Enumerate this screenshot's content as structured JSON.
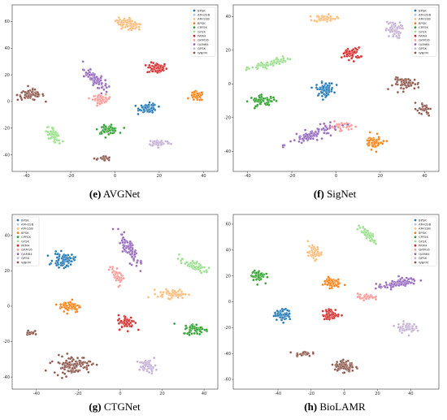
{
  "class_colors": {
    "BPSK": "#1f77b4",
    "AM-DSB": "#aec7e8",
    "AM-SSB": "#ffbb78",
    "8PSK": "#ff7f0e",
    "CPFSK": "#2ca02c",
    "GFSK": "#98df8a",
    "PAM4": "#d62728",
    "QAM16": "#ff9896",
    "QAM64": "#9467bd",
    "QPSK": "#c5b0d5",
    "WBFM": "#8c564b"
  },
  "chart_data": [
    {
      "type": "scatter",
      "title": "",
      "caption_label": "(e)",
      "caption_name": "AVGNet",
      "xlabel": "",
      "ylabel": "",
      "xlim": [
        -45,
        45
      ],
      "ylim": [
        -50,
        70
      ],
      "xticks": [
        -40,
        -20,
        0,
        20,
        40
      ],
      "yticks": [
        -40,
        -20,
        0,
        20,
        40,
        60
      ],
      "legend": [
        "BPSK",
        "AM-DSB",
        "AM-SSB",
        "8PSK",
        "CPFSK",
        "GFSK",
        "PAM4",
        "QAM16",
        "QAM64",
        "QPSK",
        "WBFM"
      ],
      "legend_position": "top-right",
      "clusters": [
        {
          "label": "AM-SSB",
          "cx": 6,
          "cy": 58,
          "rx": 6,
          "ry": 3.5,
          "angle": -30,
          "n": 80
        },
        {
          "label": "PAM4",
          "cx": 19,
          "cy": 25,
          "rx": 4.5,
          "ry": 4,
          "angle": 0,
          "n": 70
        },
        {
          "label": "QAM64",
          "cx": -9,
          "cy": 17,
          "rx": 8,
          "ry": 3,
          "angle": -60,
          "n": 90
        },
        {
          "label": "QAM16",
          "cx": -6,
          "cy": 2,
          "rx": 4,
          "ry": 3,
          "angle": 0,
          "n": 60
        },
        {
          "label": "WBFM",
          "cx": -38,
          "cy": 5,
          "rx": 6,
          "ry": 4,
          "angle": 0,
          "n": 70
        },
        {
          "label": "8PSK",
          "cx": 37,
          "cy": 4,
          "rx": 3,
          "ry": 3.5,
          "angle": 0,
          "n": 50
        },
        {
          "label": "BPSK",
          "cx": 15,
          "cy": -5,
          "rx": 4,
          "ry": 3.5,
          "angle": 0,
          "n": 70
        },
        {
          "label": "CPFSK",
          "cx": -3,
          "cy": -21,
          "rx": 4.5,
          "ry": 3,
          "angle": 0,
          "n": 60
        },
        {
          "label": "GFSK",
          "cx": -28,
          "cy": -25,
          "rx": 6,
          "ry": 2.5,
          "angle": -70,
          "n": 60
        },
        {
          "label": "QPSK",
          "cx": 20,
          "cy": -31,
          "rx": 5,
          "ry": 2.5,
          "angle": 0,
          "n": 60
        },
        {
          "label": "WBFM",
          "cx": -5,
          "cy": -43,
          "rx": 3,
          "ry": 2,
          "angle": 0,
          "n": 25
        }
      ]
    },
    {
      "type": "scatter",
      "title": "",
      "caption_label": "(f)",
      "caption_name": "SigNet",
      "xlabel": "",
      "ylabel": "",
      "xlim": [
        -45,
        45
      ],
      "ylim": [
        -50,
        45
      ],
      "xticks": [
        -40,
        -20,
        0,
        20,
        40
      ],
      "yticks": [
        -40,
        -20,
        0,
        20,
        40
      ],
      "legend": [
        "BPSK",
        "AM-DSB",
        "AM-SSB",
        "8PSK",
        "CPFSK",
        "GFSK",
        "PAM4",
        "QAM16",
        "QAM64",
        "QPSK",
        "WBFM"
      ],
      "legend_position": "top-right",
      "clusters": [
        {
          "label": "AM-SSB",
          "cx": -5,
          "cy": 39,
          "rx": 5,
          "ry": 2,
          "angle": 0,
          "n": 60
        },
        {
          "label": "QPSK",
          "cx": 26,
          "cy": 32,
          "rx": 3.5,
          "ry": 5,
          "angle": 0,
          "n": 55
        },
        {
          "label": "GFSK",
          "cx": -30,
          "cy": 12,
          "rx": 10,
          "ry": 2,
          "angle": 20,
          "n": 70
        },
        {
          "label": "PAM4",
          "cx": 7,
          "cy": 18,
          "rx": 4,
          "ry": 3.5,
          "angle": 0,
          "n": 60
        },
        {
          "label": "BPSK",
          "cx": -5,
          "cy": -3,
          "rx": 4,
          "ry": 4,
          "angle": 0,
          "n": 70
        },
        {
          "label": "WBFM",
          "cx": 32,
          "cy": 0,
          "rx": 6,
          "ry": 3.5,
          "angle": 0,
          "n": 60
        },
        {
          "label": "WBFM",
          "cx": 40,
          "cy": -15,
          "rx": 3,
          "ry": 3,
          "angle": -40,
          "n": 30
        },
        {
          "label": "CPFSK",
          "cx": -33,
          "cy": -10,
          "rx": 6,
          "ry": 3,
          "angle": 0,
          "n": 60
        },
        {
          "label": "QAM16",
          "cx": 2,
          "cy": -25,
          "rx": 5,
          "ry": 2.5,
          "angle": 0,
          "n": 45
        },
        {
          "label": "QAM64",
          "cx": -10,
          "cy": -30,
          "rx": 12,
          "ry": 3,
          "angle": 25,
          "n": 90
        },
        {
          "label": "8PSK",
          "cx": 17,
          "cy": -35,
          "rx": 4,
          "ry": 5,
          "angle": 20,
          "n": 55
        }
      ]
    },
    {
      "type": "scatter",
      "title": "",
      "caption_label": "(g)",
      "caption_name": "CTGNet",
      "xlabel": "",
      "ylabel": "",
      "xlim": [
        -50,
        45
      ],
      "ylim": [
        -45,
        50
      ],
      "xticks": [
        -40,
        -20,
        0,
        20,
        40
      ],
      "yticks": [
        -40,
        -20,
        0,
        20,
        40
      ],
      "legend": [
        "BPSK",
        "AM-DSB",
        "AM-SSB",
        "8PSK",
        "CPFSK",
        "GFSK",
        "PAM4",
        "QAM16",
        "QAM64",
        "QPSK",
        "WBFM"
      ],
      "legend_position": "top-left",
      "clusters": [
        {
          "label": "BPSK",
          "cx": -27,
          "cy": 26,
          "rx": 5,
          "ry": 4,
          "angle": 0,
          "n": 80
        },
        {
          "label": "QAM64",
          "cx": 4,
          "cy": 33,
          "rx": 10,
          "ry": 3,
          "angle": -65,
          "n": 80
        },
        {
          "label": "QAM16",
          "cx": -2,
          "cy": 18,
          "rx": 5,
          "ry": 2.5,
          "angle": -70,
          "n": 40
        },
        {
          "label": "GFSK",
          "cx": 35,
          "cy": 23,
          "rx": 7,
          "ry": 2.5,
          "angle": -30,
          "n": 55
        },
        {
          "label": "AM-SSB",
          "cx": 25,
          "cy": 7,
          "rx": 7,
          "ry": 2.5,
          "angle": 0,
          "n": 60
        },
        {
          "label": "8PSK",
          "cx": -24,
          "cy": 0,
          "rx": 5,
          "ry": 3.5,
          "angle": 0,
          "n": 65
        },
        {
          "label": "PAM4",
          "cx": 3,
          "cy": -9,
          "rx": 4,
          "ry": 4,
          "angle": 0,
          "n": 60
        },
        {
          "label": "CPFSK",
          "cx": 36,
          "cy": -13,
          "rx": 6,
          "ry": 3,
          "angle": 0,
          "n": 60
        },
        {
          "label": "WBFM",
          "cx": -43,
          "cy": -15,
          "rx": 2,
          "ry": 2,
          "angle": 0,
          "n": 20
        },
        {
          "label": "WBFM",
          "cx": -23,
          "cy": -33,
          "rx": 9,
          "ry": 5,
          "angle": 0,
          "n": 110
        },
        {
          "label": "QPSK",
          "cx": 13,
          "cy": -34,
          "rx": 4,
          "ry": 3.5,
          "angle": 0,
          "n": 50
        }
      ]
    },
    {
      "type": "scatter",
      "title": "",
      "caption_label": "(h)",
      "caption_name": "BioLAMR",
      "xlabel": "",
      "ylabel": "",
      "xlim": [
        -65,
        55
      ],
      "ylim": [
        -65,
        65
      ],
      "xticks": [
        -40,
        -20,
        0,
        20,
        40
      ],
      "yticks": [
        -60,
        -40,
        -20,
        0,
        20,
        40,
        60
      ],
      "legend": [
        "BPSK",
        "AM-DSB",
        "AM-SSB",
        "8PSK",
        "CPFSK",
        "GFSK",
        "PAM4",
        "QAM16",
        "QAM64",
        "QPSK",
        "WBFM"
      ],
      "legend_position": "top-right",
      "clusters": [
        {
          "label": "GFSK",
          "cx": 14,
          "cy": 52,
          "rx": 7,
          "ry": 2.5,
          "angle": -50,
          "n": 55
        },
        {
          "label": "AM-SSB",
          "cx": -18,
          "cy": 38,
          "rx": 4,
          "ry": 5,
          "angle": 0,
          "n": 50
        },
        {
          "label": "CPFSK",
          "cx": -52,
          "cy": 20,
          "rx": 4,
          "ry": 4.5,
          "angle": 0,
          "n": 55
        },
        {
          "label": "8PSK",
          "cx": -8,
          "cy": 15,
          "rx": 5,
          "ry": 4,
          "angle": 0,
          "n": 60
        },
        {
          "label": "QAM64",
          "cx": 32,
          "cy": 14,
          "rx": 12,
          "ry": 3,
          "angle": 15,
          "n": 90
        },
        {
          "label": "QAM16",
          "cx": 13,
          "cy": 4,
          "rx": 5,
          "ry": 2.5,
          "angle": 0,
          "n": 40
        },
        {
          "label": "BPSK",
          "cx": -37,
          "cy": -10,
          "rx": 5,
          "ry": 4,
          "angle": 0,
          "n": 70
        },
        {
          "label": "PAM4",
          "cx": -8,
          "cy": -10,
          "rx": 5,
          "ry": 4,
          "angle": 0,
          "n": 60
        },
        {
          "label": "QPSK",
          "cx": 37,
          "cy": -20,
          "rx": 6,
          "ry": 4,
          "angle": 0,
          "n": 50
        },
        {
          "label": "WBFM",
          "cx": -25,
          "cy": -40,
          "rx": 5,
          "ry": 2,
          "angle": 0,
          "n": 25
        },
        {
          "label": "WBFM",
          "cx": 0,
          "cy": -50,
          "rx": 6,
          "ry": 5,
          "angle": 0,
          "n": 80
        }
      ]
    }
  ]
}
